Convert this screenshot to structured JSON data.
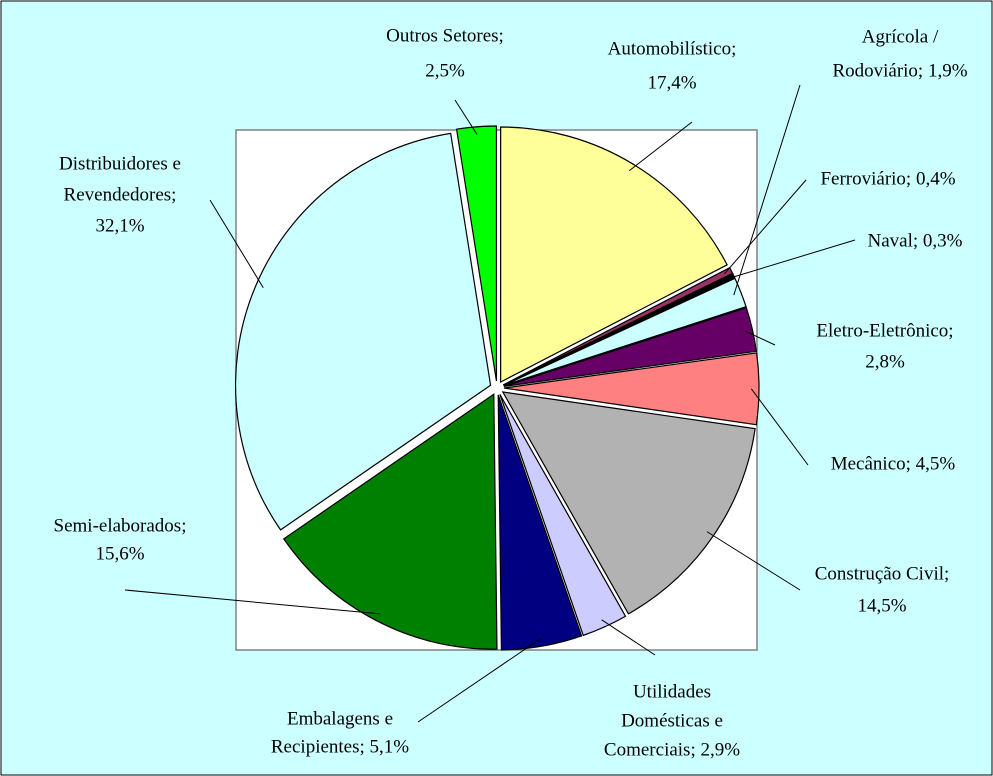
{
  "chart_data": {
    "type": "pie",
    "values": [
      17.4,
      0.4,
      0.3,
      1.9,
      2.8,
      4.5,
      14.5,
      2.9,
      5.1,
      15.6,
      32.1,
      2.5
    ],
    "labels": [
      [
        "Automobilístico;",
        "17,4%"
      ],
      [
        "Ferroviário; 0,4%"
      ],
      [
        "Naval; 0,3%"
      ],
      [
        "Agrícola /",
        "Rodoviário; 1,9%"
      ],
      [
        "Eletro-Eletrônico;",
        "2,8%"
      ],
      [
        "Mecânico; 4,5%"
      ],
      [
        "Construção Civil;",
        "14,5%"
      ],
      [
        "Utilidades",
        "Domésticas e",
        "Comerciais; 2,9%"
      ],
      [
        "Embalagens e",
        "Recipientes; 5,1%"
      ],
      [
        "Semi-elaborados;",
        "15,6%"
      ],
      [
        "Distribuidores e",
        "Revendedores;",
        "32,1%"
      ],
      [
        "Outros Setores;",
        "2,5%"
      ]
    ],
    "colors": [
      "#FFFF99",
      "#993366",
      "#000000",
      "#CCFFFF",
      "#660066",
      "#FF8080",
      "#B2B2B2",
      "#CCCCFF",
      "#000080",
      "#008000",
      "#CCFFFF",
      "#00FF00"
    ]
  }
}
